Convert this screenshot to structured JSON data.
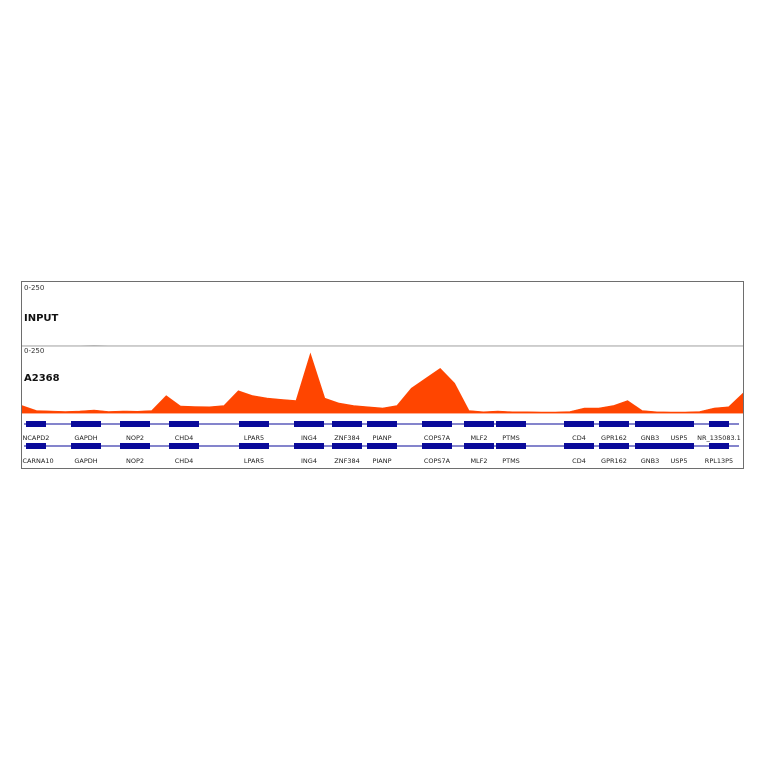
{
  "colors": {
    "signal": "#ff4500",
    "gene": "#0a0a9a",
    "input_signal": "#9a9a9a"
  },
  "chart_data": {
    "type": "area",
    "title": "",
    "xlabel": "",
    "ylabel": "",
    "x": [
      0,
      2,
      4,
      6,
      8,
      10,
      12,
      14,
      16,
      18,
      20,
      22,
      24,
      26,
      28,
      30,
      32,
      34,
      36,
      38,
      40,
      42,
      44,
      46,
      48,
      50,
      52,
      54,
      56,
      58,
      60,
      62,
      64,
      66,
      68,
      70,
      72,
      74,
      76,
      78,
      80,
      82,
      84,
      86,
      88,
      90,
      92,
      94,
      96,
      98,
      100
    ],
    "ylim": [
      0,
      250
    ],
    "series": [
      {
        "name": "INPUT",
        "range_label": "0-250",
        "values": [
          1,
          1,
          1,
          1,
          1,
          2,
          1,
          1,
          1,
          1,
          1,
          1,
          1,
          1,
          1,
          1,
          1,
          1,
          1,
          1,
          1,
          1,
          1,
          1,
          1,
          1,
          1,
          1,
          1,
          1,
          1,
          1,
          1,
          1,
          1,
          1,
          1,
          1,
          1,
          1,
          1,
          1,
          1,
          1,
          1,
          1,
          1,
          1,
          1,
          1,
          1
        ]
      },
      {
        "name": "A2368",
        "range_label": "0-250",
        "values": [
          30,
          10,
          8,
          6,
          8,
          12,
          6,
          8,
          7,
          10,
          70,
          28,
          26,
          25,
          30,
          90,
          70,
          60,
          55,
          50,
          240,
          60,
          40,
          30,
          25,
          20,
          30,
          100,
          140,
          180,
          120,
          10,
          5,
          8,
          5,
          5,
          4,
          4,
          6,
          20,
          20,
          30,
          50,
          10,
          5,
          4,
          4,
          6,
          20,
          25,
          80
        ]
      }
    ],
    "genes_track1": [
      "NCAPD2",
      "GAPDH",
      "NOP2",
      "CHD4",
      "LPAR5",
      "ING4",
      "ZNF384",
      "PIANP",
      "COPS7A",
      "MLF2",
      "PTMS",
      "CD4",
      "GPR162",
      "GNB3",
      "USP5",
      "NR_135083.1"
    ],
    "genes_track2": [
      "SCARNA10",
      "GAPDH",
      "NOP2",
      "CHD4",
      "LPAR5",
      "ING4",
      "ZNF384",
      "PIANP",
      "COPS7A",
      "MLF2",
      "PTMS",
      "CD4",
      "GPR162",
      "GNB3",
      "USP5",
      "RPL13P5"
    ]
  }
}
